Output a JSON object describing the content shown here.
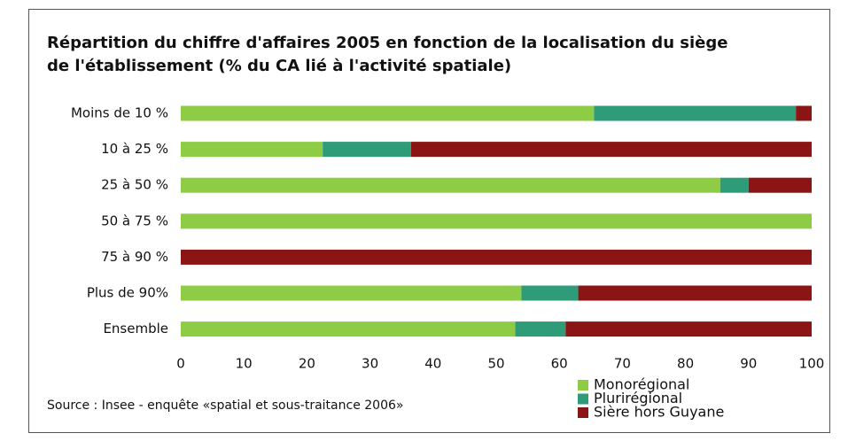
{
  "chart_data": {
    "type": "stacked_barh",
    "title": "Répartition du chiffre d'affaires 2005 en fonction de la localisation du siège de l'établissement (% du CA lié à l'activité spatiale)",
    "categories": [
      "Moins de 10 %",
      "10 à 25 %",
      "25 à 50 %",
      "50 à 75 %",
      "75 à 90 %",
      "Plus de 90%",
      "Ensemble"
    ],
    "series": [
      {
        "name": "Monorégional",
        "color": "#8fcc45",
        "values": [
          65.5,
          22.5,
          85.5,
          100,
          0,
          54,
          53
        ]
      },
      {
        "name": "Plurirégional",
        "color": "#2e9c78",
        "values": [
          32,
          14,
          4.5,
          0,
          0,
          9,
          8
        ]
      },
      {
        "name": "Sière hors Guyane",
        "color": "#8b1515",
        "values": [
          2.5,
          63.5,
          10,
          0,
          100,
          37,
          39
        ]
      }
    ],
    "xlim": [
      0,
      100
    ],
    "xticks": [
      0,
      10,
      20,
      30,
      40,
      50,
      60,
      70,
      80,
      90,
      100
    ],
    "source": "Source : Insee - enquête «spatial et sous-traitance 2006»"
  }
}
